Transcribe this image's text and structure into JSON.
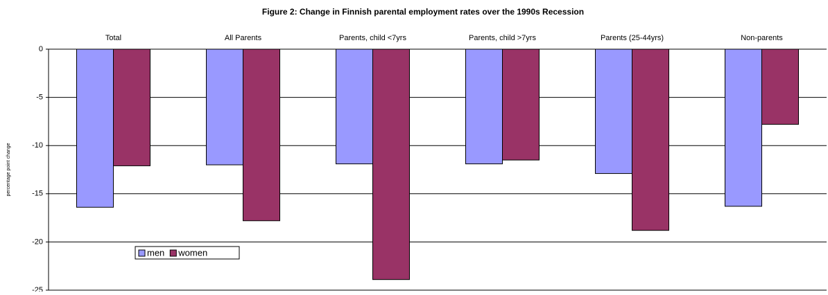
{
  "chart_data": {
    "type": "bar",
    "title": "Figure 2: Change in Finnish parental employment rates over the 1990s Recession",
    "y_label": "percentage point change",
    "categories": [
      "Total",
      "All Parents",
      "Parents, child <7yrs",
      "Parents, child >7yrs",
      "Parents (25-44yrs)",
      "Non-parents"
    ],
    "series": [
      {
        "name": "men",
        "color": "#9999ff",
        "values": [
          -16.4,
          -12.0,
          -11.9,
          -11.9,
          -12.9,
          -16.3
        ]
      },
      {
        "name": "women",
        "color": "#993366",
        "values": [
          -12.1,
          -17.8,
          -23.9,
          -11.5,
          -18.8,
          -7.8
        ]
      }
    ],
    "ylim": [
      -25,
      0
    ],
    "yticks": [
      0,
      -5,
      -10,
      -15,
      -20,
      -25
    ],
    "grid": true,
    "legend": "lower left"
  }
}
